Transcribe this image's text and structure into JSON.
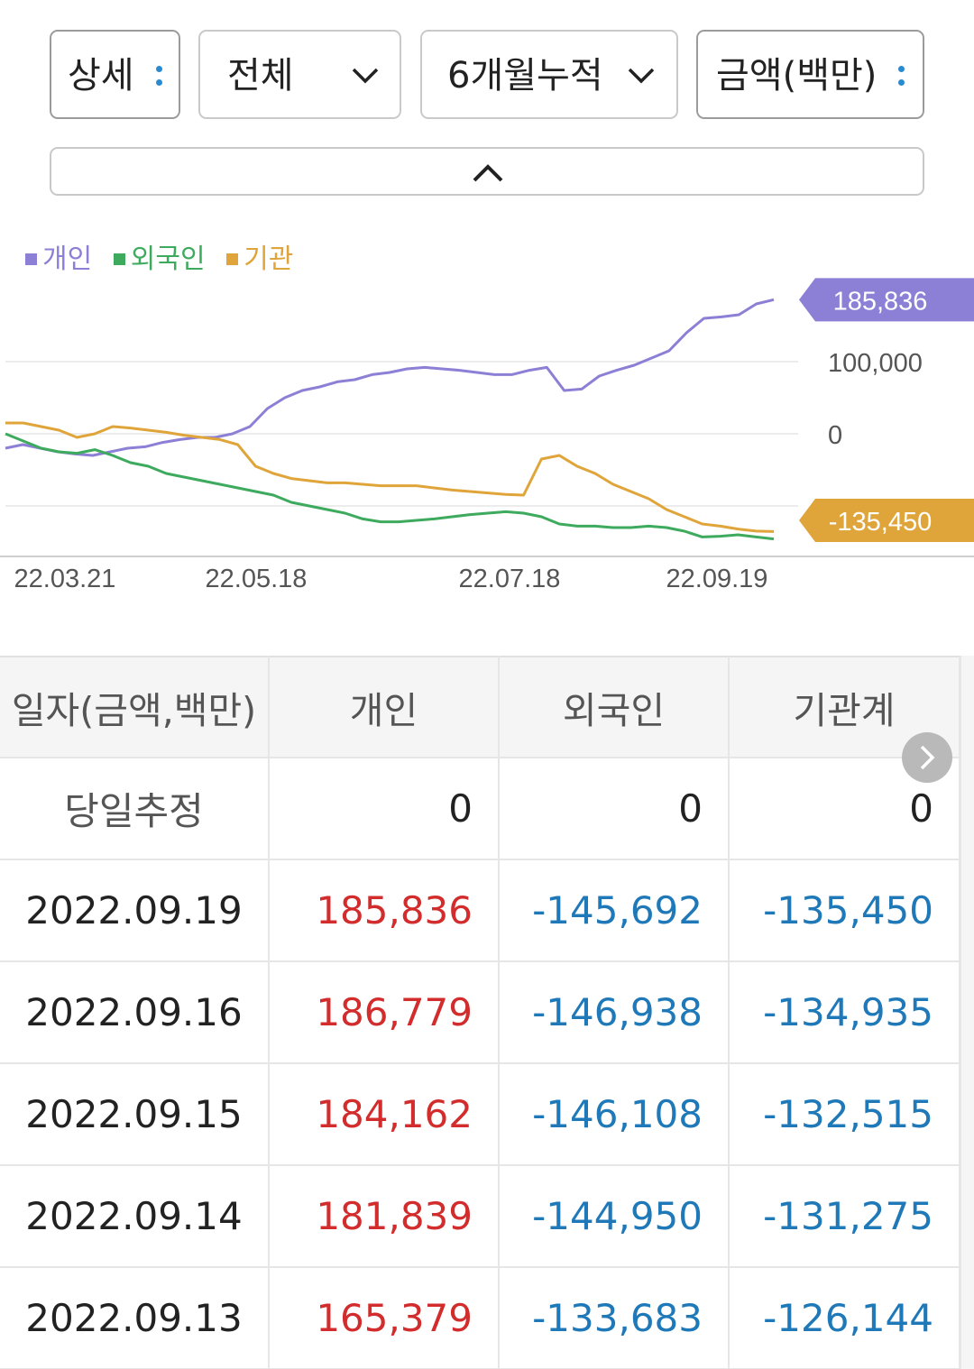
{
  "filters": {
    "view": "상세",
    "market": "전체",
    "period": "6개월누적",
    "unit": "금액(백만)"
  },
  "icons": {
    "view_menu": "vertical-dots-icon",
    "market_dropdown": "chevron-down-icon",
    "period_dropdown": "chevron-down-icon",
    "unit_menu": "vertical-dots-icon",
    "collapse": "chevron-up-icon",
    "table_next": "chevron-right-icon"
  },
  "legend": [
    {
      "label": "개인",
      "color": "#8c7fd6"
    },
    {
      "label": "외국인",
      "color": "#3eaa5e"
    },
    {
      "label": "기관",
      "color": "#e0a53a"
    }
  ],
  "chart_data": {
    "type": "line",
    "x_ticks": [
      "22.03.21",
      "22.05.18",
      "22.07.18",
      "22.09.19"
    ],
    "y_ticks": [
      "100,000",
      "0"
    ],
    "ylim": [
      -170000,
      200000
    ],
    "grid": true,
    "legend_position": "top-left",
    "callouts": [
      {
        "series": "개인",
        "label": "185,836",
        "color": "#8c7fd6"
      },
      {
        "series": "기관",
        "label": "-135,450",
        "color": "#e0a53a"
      }
    ],
    "series": [
      {
        "name": "개인",
        "color": "#8c7fd6",
        "values": [
          -20000,
          -15000,
          -20000,
          -25000,
          -28000,
          -30000,
          -25000,
          -20000,
          -18000,
          -12000,
          -8000,
          -5000,
          -5000,
          0,
          10000,
          35000,
          50000,
          60000,
          65000,
          72000,
          75000,
          82000,
          85000,
          90000,
          92000,
          90000,
          88000,
          85000,
          82000,
          82000,
          88000,
          92000,
          60000,
          62000,
          80000,
          88000,
          95000,
          105000,
          115000,
          140000,
          160000,
          162000,
          165000,
          180000,
          185836
        ]
      },
      {
        "name": "외국인",
        "color": "#3eaa5e",
        "values": [
          0,
          -10000,
          -20000,
          -25000,
          -27000,
          -22000,
          -30000,
          -40000,
          -45000,
          -55000,
          -60000,
          -65000,
          -70000,
          -75000,
          -80000,
          -85000,
          -95000,
          -100000,
          -105000,
          -110000,
          -118000,
          -122000,
          -122000,
          -120000,
          -118000,
          -115000,
          -112000,
          -110000,
          -108000,
          -110000,
          -115000,
          -125000,
          -128000,
          -128000,
          -130000,
          -130000,
          -128000,
          -130000,
          -135000,
          -143000,
          -142000,
          -140000,
          -143000,
          -145692
        ]
      },
      {
        "name": "기관",
        "color": "#e0a53a",
        "values": [
          15000,
          15000,
          10000,
          5000,
          -5000,
          0,
          10000,
          8000,
          5000,
          2000,
          -2000,
          -5000,
          -8000,
          -15000,
          -45000,
          -55000,
          -62000,
          -65000,
          -68000,
          -68000,
          -70000,
          -72000,
          -72000,
          -72000,
          -75000,
          -78000,
          -80000,
          -82000,
          -84000,
          -85000,
          -35000,
          -30000,
          -45000,
          -55000,
          -70000,
          -80000,
          -90000,
          -105000,
          -115000,
          -125000,
          -128000,
          -132000,
          -134935,
          -135450
        ]
      }
    ]
  },
  "table": {
    "headers": [
      "일자(금액,백만)",
      "개인",
      "외국인",
      "기관계"
    ],
    "rows": [
      {
        "date": "당일추정",
        "individual": "0",
        "foreign": "0",
        "institution": "0"
      },
      {
        "date": "2022.09.19",
        "individual": "185,836",
        "foreign": "-145,692",
        "institution": "-135,450"
      },
      {
        "date": "2022.09.16",
        "individual": "186,779",
        "foreign": "-146,938",
        "institution": "-134,935"
      },
      {
        "date": "2022.09.15",
        "individual": "184,162",
        "foreign": "-146,108",
        "institution": "-132,515"
      },
      {
        "date": "2022.09.14",
        "individual": "181,839",
        "foreign": "-144,950",
        "institution": "-131,275"
      },
      {
        "date": "2022.09.13",
        "individual": "165,379",
        "foreign": "-133,683",
        "institution": "-126,144"
      }
    ]
  }
}
